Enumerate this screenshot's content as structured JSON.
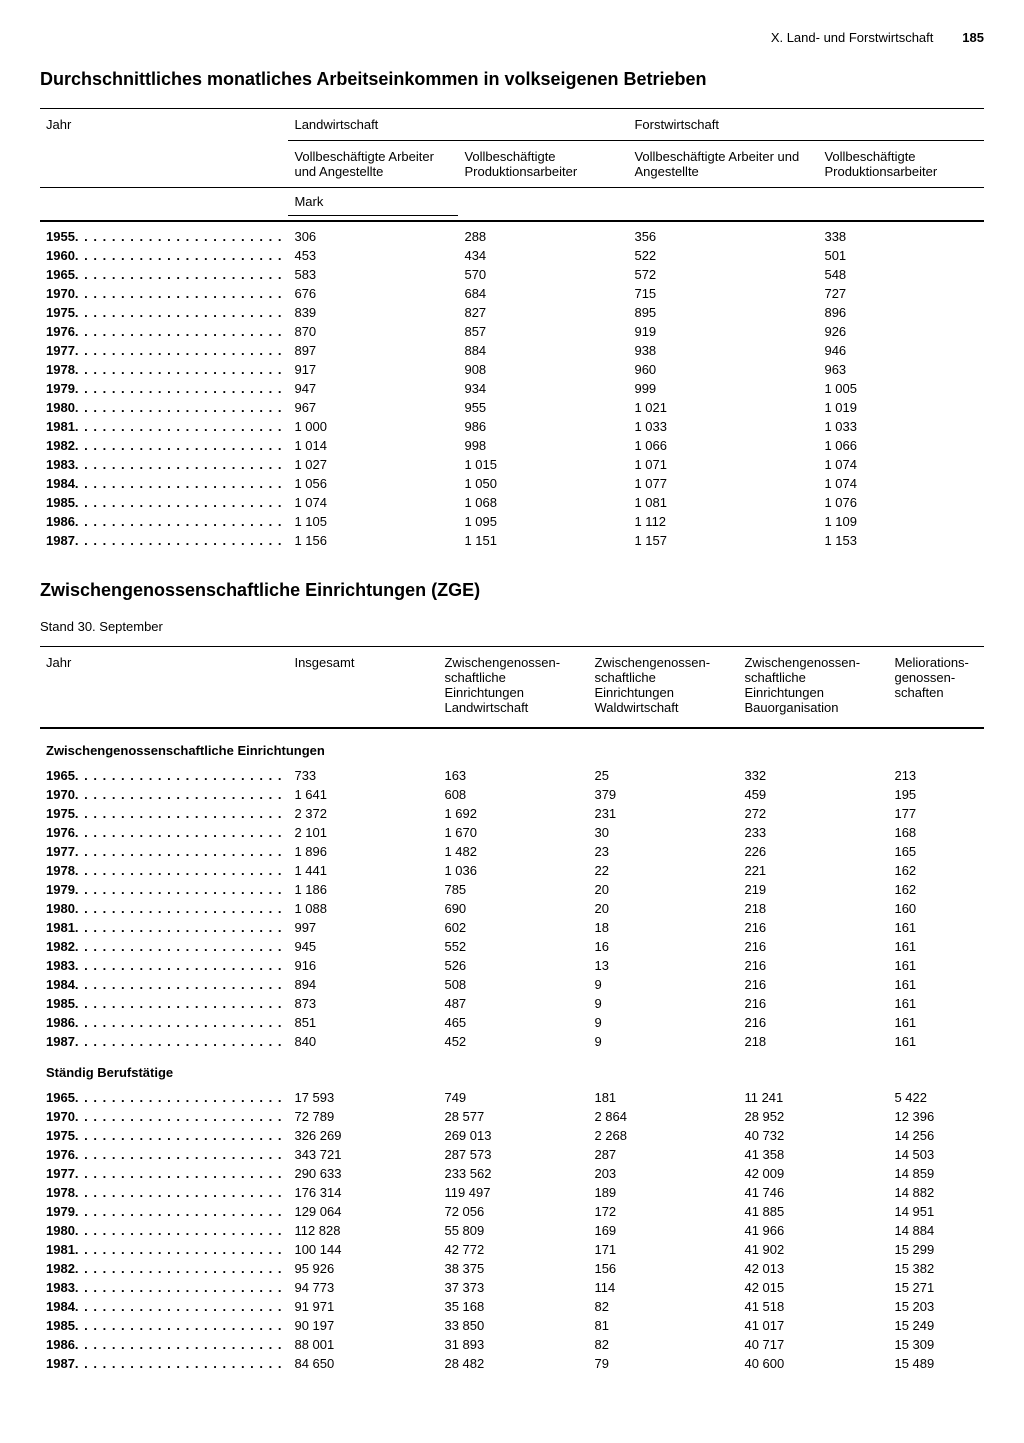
{
  "page": {
    "chapter": "X. Land- und Forstwirtschaft",
    "number": "185"
  },
  "table1": {
    "title": "Durchschnittliches monatliches Arbeitseinkommen in volkseigenen Betrieben",
    "col_year": "Jahr",
    "group_a": "Landwirtschaft",
    "group_b": "Forstwirtschaft",
    "sub1": "Vollbeschäftigte Arbeiter und Angestellte",
    "sub2": "Vollbeschäftigte Produktionsarbeiter",
    "unit": "Mark",
    "rows": [
      {
        "y": "1955",
        "a": "306",
        "b": "288",
        "c": "356",
        "d": "338"
      },
      {
        "y": "1960",
        "a": "453",
        "b": "434",
        "c": "522",
        "d": "501"
      },
      {
        "y": "1965",
        "a": "583",
        "b": "570",
        "c": "572",
        "d": "548"
      },
      {
        "y": "1970",
        "a": "676",
        "b": "684",
        "c": "715",
        "d": "727"
      },
      {
        "y": "1975",
        "a": "839",
        "b": "827",
        "c": "895",
        "d": "896"
      },
      {
        "y": "1976",
        "a": "870",
        "b": "857",
        "c": "919",
        "d": "926"
      },
      {
        "y": "1977",
        "a": "897",
        "b": "884",
        "c": "938",
        "d": "946"
      },
      {
        "y": "1978",
        "a": "917",
        "b": "908",
        "c": "960",
        "d": "963"
      },
      {
        "y": "1979",
        "a": "947",
        "b": "934",
        "c": "999",
        "d": "1 005"
      },
      {
        "y": "1980",
        "a": "967",
        "b": "955",
        "c": "1 021",
        "d": "1 019"
      },
      {
        "y": "1981",
        "a": "1 000",
        "b": "986",
        "c": "1 033",
        "d": "1 033"
      },
      {
        "y": "1982",
        "a": "1 014",
        "b": "998",
        "c": "1 066",
        "d": "1 066"
      },
      {
        "y": "1983",
        "a": "1 027",
        "b": "1 015",
        "c": "1 071",
        "d": "1 074"
      },
      {
        "y": "1984",
        "a": "1 056",
        "b": "1 050",
        "c": "1 077",
        "d": "1 074"
      },
      {
        "y": "1985",
        "a": "1 074",
        "b": "1 068",
        "c": "1 081",
        "d": "1 076"
      },
      {
        "y": "1986",
        "a": "1 105",
        "b": "1 095",
        "c": "1 112",
        "d": "1 109"
      },
      {
        "y": "1987",
        "a": "1 156",
        "b": "1 151",
        "c": "1 157",
        "d": "1 153"
      }
    ]
  },
  "table2": {
    "title": "Zwischengenossenschaftliche Einrichtungen (ZGE)",
    "subtitle": "Stand 30. September",
    "col_year": "Jahr",
    "col_total": "Insgesamt",
    "col_a": "Zwischengenossen-\nschaftliche\nEinrichtungen\nLandwirtschaft",
    "col_b": "Zwischengenossen-\nschaftliche\nEinrichtungen\nWaldwirtschaft",
    "col_c": "Zwischengenossen-\nschaftliche\nEinrichtungen\nBauorganisation",
    "col_d": "Meliorations-\ngenossen-\nschaften",
    "section_a": "Zwischengenossenschaftliche Einrichtungen",
    "section_b": "Ständig Berufstätige",
    "rows_a": [
      {
        "y": "1965",
        "t": "733",
        "a": "163",
        "b": "25",
        "c": "332",
        "d": "213"
      },
      {
        "y": "1970",
        "t": "1 641",
        "a": "608",
        "b": "379",
        "c": "459",
        "d": "195"
      },
      {
        "y": "1975",
        "t": "2 372",
        "a": "1 692",
        "b": "231",
        "c": "272",
        "d": "177"
      },
      {
        "y": "1976",
        "t": "2 101",
        "a": "1 670",
        "b": "30",
        "c": "233",
        "d": "168"
      },
      {
        "y": "1977",
        "t": "1 896",
        "a": "1 482",
        "b": "23",
        "c": "226",
        "d": "165"
      },
      {
        "y": "1978",
        "t": "1 441",
        "a": "1 036",
        "b": "22",
        "c": "221",
        "d": "162"
      },
      {
        "y": "1979",
        "t": "1 186",
        "a": "785",
        "b": "20",
        "c": "219",
        "d": "162"
      },
      {
        "y": "1980",
        "t": "1 088",
        "a": "690",
        "b": "20",
        "c": "218",
        "d": "160"
      },
      {
        "y": "1981",
        "t": "997",
        "a": "602",
        "b": "18",
        "c": "216",
        "d": "161"
      },
      {
        "y": "1982",
        "t": "945",
        "a": "552",
        "b": "16",
        "c": "216",
        "d": "161"
      },
      {
        "y": "1983",
        "t": "916",
        "a": "526",
        "b": "13",
        "c": "216",
        "d": "161"
      },
      {
        "y": "1984",
        "t": "894",
        "a": "508",
        "b": "9",
        "c": "216",
        "d": "161"
      },
      {
        "y": "1985",
        "t": "873",
        "a": "487",
        "b": "9",
        "c": "216",
        "d": "161"
      },
      {
        "y": "1986",
        "t": "851",
        "a": "465",
        "b": "9",
        "c": "216",
        "d": "161"
      },
      {
        "y": "1987",
        "t": "840",
        "a": "452",
        "b": "9",
        "c": "218",
        "d": "161"
      }
    ],
    "rows_b": [
      {
        "y": "1965",
        "t": "17 593",
        "a": "749",
        "b": "181",
        "c": "11 241",
        "d": "5 422"
      },
      {
        "y": "1970",
        "t": "72 789",
        "a": "28 577",
        "b": "2 864",
        "c": "28 952",
        "d": "12 396"
      },
      {
        "y": "1975",
        "t": "326 269",
        "a": "269 013",
        "b": "2 268",
        "c": "40 732",
        "d": "14 256"
      },
      {
        "y": "1976",
        "t": "343 721",
        "a": "287 573",
        "b": "287",
        "c": "41 358",
        "d": "14 503"
      },
      {
        "y": "1977",
        "t": "290 633",
        "a": "233 562",
        "b": "203",
        "c": "42 009",
        "d": "14 859"
      },
      {
        "y": "1978",
        "t": "176 314",
        "a": "119 497",
        "b": "189",
        "c": "41 746",
        "d": "14 882"
      },
      {
        "y": "1979",
        "t": "129 064",
        "a": "72 056",
        "b": "172",
        "c": "41 885",
        "d": "14 951"
      },
      {
        "y": "1980",
        "t": "112 828",
        "a": "55 809",
        "b": "169",
        "c": "41 966",
        "d": "14 884"
      },
      {
        "y": "1981",
        "t": "100 144",
        "a": "42 772",
        "b": "171",
        "c": "41 902",
        "d": "15 299"
      },
      {
        "y": "1982",
        "t": "95 926",
        "a": "38 375",
        "b": "156",
        "c": "42 013",
        "d": "15 382"
      },
      {
        "y": "1983",
        "t": "94 773",
        "a": "37 373",
        "b": "114",
        "c": "42 015",
        "d": "15 271"
      },
      {
        "y": "1984",
        "t": "91 971",
        "a": "35 168",
        "b": "82",
        "c": "41 518",
        "d": "15 203"
      },
      {
        "y": "1985",
        "t": "90 197",
        "a": "33 850",
        "b": "81",
        "c": "41 017",
        "d": "15 249"
      },
      {
        "y": "1986",
        "t": "88 001",
        "a": "31 893",
        "b": "82",
        "c": "40 717",
        "d": "15 309"
      },
      {
        "y": "1987",
        "t": "84 650",
        "a": "28 482",
        "b": "79",
        "c": "40 600",
        "d": "15 489"
      }
    ]
  }
}
